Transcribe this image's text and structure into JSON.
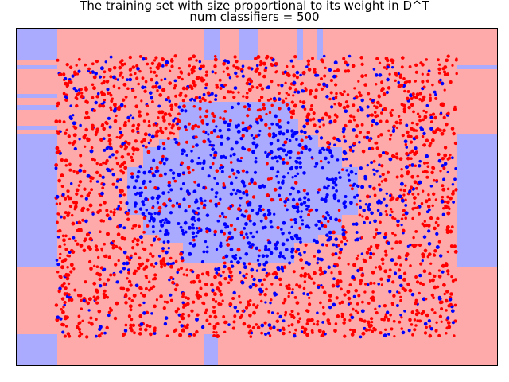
{
  "chart_data": {
    "type": "scatter",
    "title_lines": [
      "The training set with size proportional to its weight in D^T",
      "num classifiers = 500"
    ],
    "xlabel": "",
    "ylabel": "",
    "axes_visible": false,
    "grid": false,
    "legend": "none",
    "xlim": [
      -1.2,
      1.2
    ],
    "ylim": [
      -1.2,
      1.2
    ],
    "point_extent": [
      -1.0,
      1.0
    ],
    "approx_point_count": 3000,
    "series": [
      {
        "class_label": 1,
        "color": "#ff0000",
        "region_description": "outside the central elliptical region"
      },
      {
        "class_label": -1,
        "color": "#0000ff",
        "region_description": "inside the central elliptical region"
      }
    ],
    "decision_regions": {
      "positive_color": "#ffaaaa",
      "negative_color": "#aaaaff"
    }
  }
}
